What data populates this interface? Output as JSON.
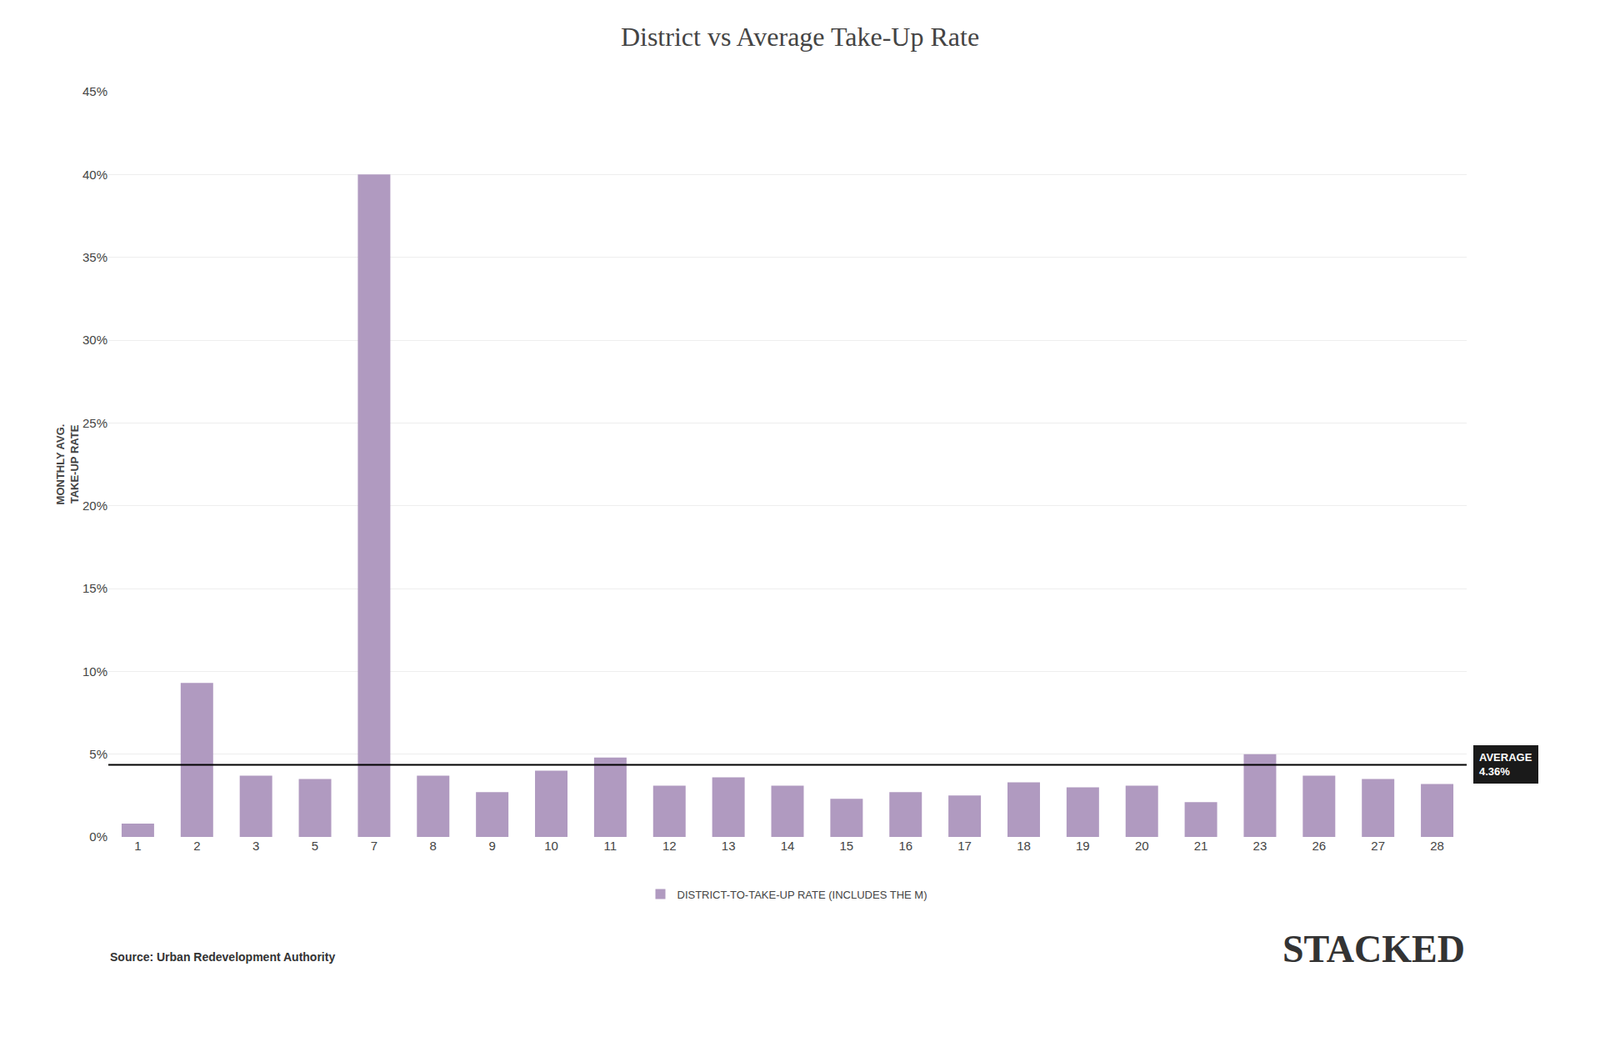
{
  "chart_data": {
    "type": "bar",
    "title": "District vs Average Take-Up Rate",
    "ylabel": "MONTHLY AVG.\nTAKE-UP RATE",
    "categories": [
      1,
      2,
      3,
      5,
      7,
      8,
      9,
      10,
      11,
      12,
      13,
      14,
      15,
      16,
      17,
      18,
      19,
      20,
      21,
      23,
      26,
      27,
      28
    ],
    "series": [
      {
        "name": "DISTRICT-TO-TAKE-UP RATE (INCLUDES THE M)",
        "color": "#b09ac0",
        "values": [
          0.008,
          0.093,
          0.037,
          0.035,
          0.4,
          0.037,
          0.027,
          0.04,
          0.048,
          0.031,
          0.036,
          0.031,
          0.023,
          0.027,
          0.025,
          0.033,
          0.03,
          0.031,
          0.021,
          0.05,
          0.037,
          0.035,
          0.032
        ]
      }
    ],
    "reference_line": {
      "value": 0.0436,
      "label": "AVERAGE\n4.36%"
    },
    "ylim": [
      0,
      0.45
    ],
    "yticks": [
      {
        "value": 0.0,
        "label": "0%"
      },
      {
        "value": 0.05,
        "label": "5%"
      },
      {
        "value": 0.1,
        "label": "10%"
      },
      {
        "value": 0.15,
        "label": "15%"
      },
      {
        "value": 0.2,
        "label": "20%"
      },
      {
        "value": 0.25,
        "label": "25%"
      },
      {
        "value": 0.3,
        "label": "30%"
      },
      {
        "value": 0.35,
        "label": "35%"
      },
      {
        "value": 0.4,
        "label": "40%"
      },
      {
        "value": 0.45,
        "label": "45%"
      }
    ],
    "grid": true,
    "legend": "bottom",
    "source": "Source: Urban Redevelopment Authority",
    "watermark": "STACKED"
  }
}
